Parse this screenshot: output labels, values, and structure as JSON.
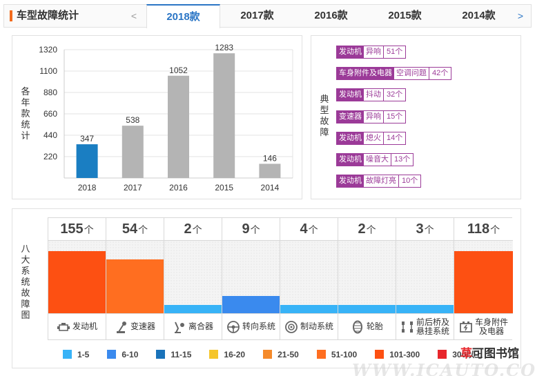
{
  "header": {
    "title": "车型故障统计",
    "prev_arrow": "<",
    "next_arrow": ">",
    "tabs": [
      {
        "label": "2018款",
        "active": true
      },
      {
        "label": "2017款",
        "active": false
      },
      {
        "label": "2016款",
        "active": false
      },
      {
        "label": "2015款",
        "active": false
      },
      {
        "label": "2014款",
        "active": false
      }
    ]
  },
  "chart_panel": {
    "side_label": "各年款统计"
  },
  "chart_data": {
    "type": "bar",
    "title": "",
    "ylabel": "各年款统计",
    "categories": [
      "2018",
      "2017",
      "2016",
      "2015",
      "2014"
    ],
    "values": [
      347,
      538,
      1052,
      1283,
      146
    ],
    "data_labels": [
      "347",
      "538",
      "1052",
      "1283",
      "146"
    ],
    "yticks": [
      220,
      440,
      660,
      880,
      1100,
      1320
    ],
    "ylim": [
      0,
      1320
    ],
    "grid": true,
    "colors": {
      "highlight": "#1a7ec2",
      "default": "#b4b4b4"
    }
  },
  "faults_panel": {
    "side_label": "典型故障",
    "items": [
      {
        "system": "发动机",
        "issue": "异响",
        "count": "51个"
      },
      {
        "system": "车身附件及电器",
        "issue": "空调问题",
        "count": "42个"
      },
      {
        "system": "发动机",
        "issue": "抖动",
        "count": "32个"
      },
      {
        "system": "变速器",
        "issue": "异响",
        "count": "15个"
      },
      {
        "system": "发动机",
        "issue": "熄火",
        "count": "14个"
      },
      {
        "system": "发动机",
        "issue": "噪音大",
        "count": "13个"
      },
      {
        "system": "发动机",
        "issue": "故障灯亮",
        "count": "10个"
      }
    ]
  },
  "systems_panel": {
    "side_label": "八大系统故障图",
    "unit": "个",
    "max_value": 155,
    "systems": [
      {
        "count": "155",
        "value": 155,
        "name": "发动机",
        "icon": "engine-icon",
        "color": "#fd5012"
      },
      {
        "count": "54",
        "value": 54,
        "name": "变速器",
        "icon": "gear-shifter-icon",
        "color": "#ff6e20"
      },
      {
        "count": "2",
        "value": 2,
        "name": "离合器",
        "icon": "clutch-icon",
        "color": "#38b3f7"
      },
      {
        "count": "9",
        "value": 9,
        "name": "转向系统",
        "icon": "steering-wheel-icon",
        "color": "#3a8aee"
      },
      {
        "count": "4",
        "value": 4,
        "name": "制动系统",
        "icon": "brake-disc-icon",
        "color": "#38b3f7"
      },
      {
        "count": "2",
        "value": 2,
        "name": "轮胎",
        "icon": "tire-icon",
        "color": "#38b3f7"
      },
      {
        "count": "3",
        "value": 3,
        "name": "前后桥及悬挂系统",
        "icon": "suspension-icon",
        "color": "#38b3f7"
      },
      {
        "count": "118",
        "value": 118,
        "name": "车身附件及电器",
        "icon": "electrical-icon",
        "color": "#fd5012"
      }
    ],
    "legend": [
      {
        "label": "1-5",
        "color": "#38b3f7"
      },
      {
        "label": "6-10",
        "color": "#3a8aee"
      },
      {
        "label": "11-15",
        "color": "#1a73ba"
      },
      {
        "label": "16-20",
        "color": "#f5c52a"
      },
      {
        "label": "21-50",
        "color": "#f58a2a"
      },
      {
        "label": "51-100",
        "color": "#ff6e20"
      },
      {
        "label": "101-300",
        "color": "#fd5012"
      },
      {
        "label": "300以上",
        "color": "#e8262b"
      }
    ]
  },
  "watermark": {
    "text_a": "草",
    "text_b": "可图书馆",
    "site": "WWW.ICAUTO.COM.CN"
  }
}
